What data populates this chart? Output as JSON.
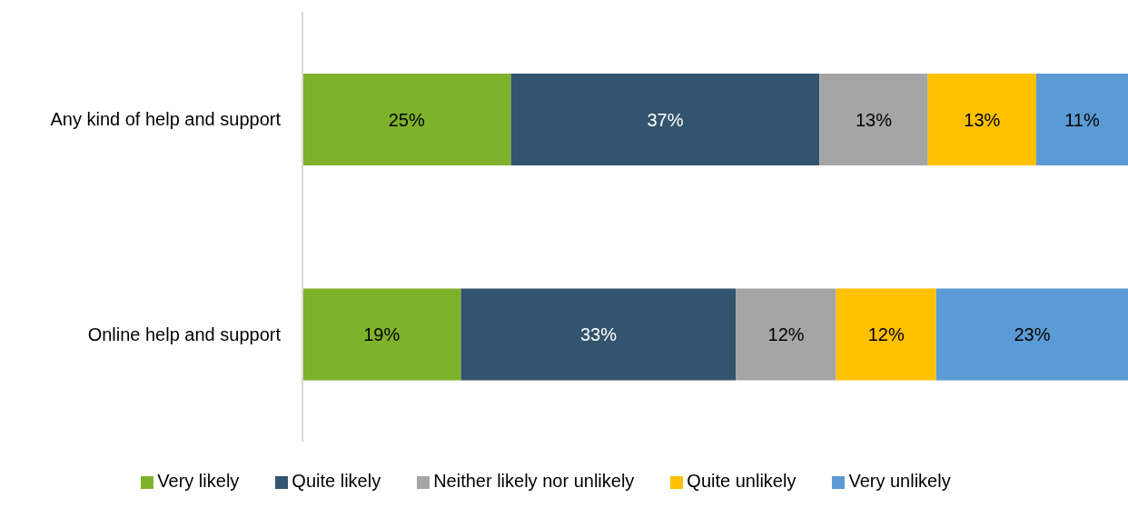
{
  "chart_data": {
    "type": "bar",
    "orientation": "horizontal",
    "stacked": true,
    "tick_labels": "y",
    "legend": "bottom",
    "grid": false,
    "categories": [
      "Any kind of help and support",
      "Online help and support"
    ],
    "series": [
      {
        "name": "Very likely",
        "color": "#7eb22b",
        "values": [
          25,
          19
        ],
        "value_labels": [
          "25%",
          "19%"
        ]
      },
      {
        "name": "Quite likely",
        "color": "#33546e",
        "values": [
          37,
          33
        ],
        "value_labels": [
          "37%",
          "33%"
        ]
      },
      {
        "name": "Neither likely nor unlikely",
        "color": "#a5a5a5",
        "values": [
          13,
          12
        ],
        "value_labels": [
          "13%",
          "12%"
        ]
      },
      {
        "name": "Quite unlikely",
        "color": "#ffc000",
        "values": [
          13,
          12
        ],
        "value_labels": [
          "13%",
          "12%"
        ]
      },
      {
        "name": "Very unlikely",
        "color": "#5b9bd5",
        "values": [
          11,
          23
        ],
        "value_labels": [
          "11%",
          "23%"
        ]
      }
    ]
  }
}
